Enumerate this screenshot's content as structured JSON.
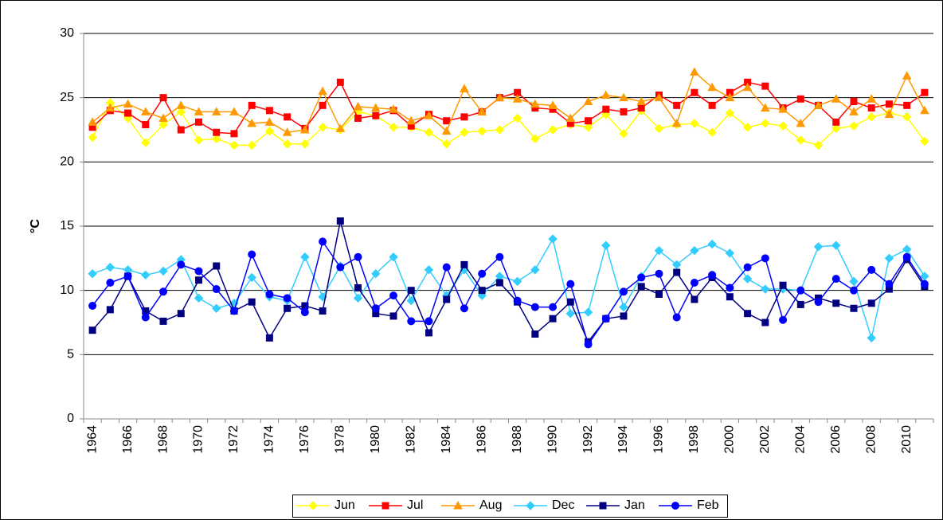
{
  "chart_data": {
    "type": "line",
    "y_label": "°C",
    "categories": [
      "1964",
      null,
      "1966",
      null,
      "1968",
      null,
      "1970",
      null,
      "1972",
      null,
      "1974",
      null,
      "1976",
      null,
      "1978",
      null,
      "1980",
      null,
      "1982",
      null,
      "1984",
      null,
      "1986",
      null,
      "1988",
      null,
      "1990",
      null,
      "1992",
      null,
      "1994",
      null,
      "1996",
      null,
      "1998",
      null,
      "2000",
      null,
      "2002",
      null,
      "2004",
      null,
      "2006",
      null,
      "2008",
      null,
      "2010",
      null
    ],
    "ylim": [
      0,
      30
    ],
    "yticks": [
      0,
      5,
      10,
      15,
      20,
      25,
      30
    ],
    "grid": true,
    "legend": "bottom",
    "series": [
      {
        "name": "Jun",
        "color": "#ffff00",
        "marker": "diamond",
        "values": [
          21.9,
          24.6,
          23.4,
          21.5,
          22.9,
          23.9,
          21.7,
          21.8,
          21.3,
          21.3,
          22.4,
          21.4,
          21.4,
          22.7,
          22.5,
          23.9,
          23.6,
          22.7,
          22.7,
          22.3,
          21.4,
          22.3,
          22.4,
          22.5,
          23.4,
          21.8,
          22.5,
          22.9,
          22.7,
          23.7,
          22.2,
          24.0,
          22.6,
          22.9,
          23.0,
          22.3,
          23.8,
          22.7,
          23.0,
          22.8,
          21.7,
          21.3,
          22.6,
          22.8,
          23.5,
          23.8,
          23.5,
          21.6
        ]
      },
      {
        "name": "Jul",
        "color": "#ff0000",
        "marker": "square",
        "values": [
          22.7,
          24.0,
          23.8,
          22.9,
          25.0,
          22.5,
          23.1,
          22.3,
          22.2,
          24.4,
          24.0,
          23.5,
          22.6,
          24.4,
          26.2,
          23.4,
          23.6,
          24.0,
          22.8,
          23.7,
          23.2,
          23.5,
          23.9,
          25.0,
          25.4,
          24.2,
          24.1,
          23.0,
          23.2,
          24.1,
          23.9,
          24.2,
          25.2,
          24.4,
          25.4,
          24.4,
          25.4,
          26.2,
          25.9,
          24.2,
          24.9,
          24.4,
          23.1,
          24.7,
          24.2,
          24.5,
          24.4,
          25.4
        ]
      },
      {
        "name": "Aug",
        "color": "#ff9900",
        "marker": "triangle",
        "values": [
          23.1,
          24.2,
          24.5,
          23.9,
          23.4,
          24.4,
          23.9,
          23.9,
          23.9,
          23.0,
          23.1,
          22.3,
          22.5,
          25.5,
          22.6,
          24.3,
          24.2,
          24.1,
          23.2,
          23.6,
          22.4,
          25.7,
          23.9,
          25.0,
          24.9,
          24.5,
          24.4,
          23.4,
          24.7,
          25.2,
          25.0,
          24.7,
          25.0,
          23.0,
          27.0,
          25.8,
          25.0,
          25.8,
          24.2,
          24.1,
          23.0,
          24.4,
          24.9,
          23.9,
          24.9,
          23.7,
          26.7,
          24.0
        ]
      },
      {
        "name": "Dec",
        "color": "#33ccff",
        "marker": "diamond",
        "values": [
          11.3,
          11.8,
          11.6,
          11.2,
          11.5,
          12.4,
          9.4,
          8.6,
          9.0,
          11.0,
          9.5,
          9.2,
          12.6,
          9.5,
          11.9,
          9.4,
          11.3,
          12.6,
          9.2,
          11.6,
          9.6,
          11.6,
          9.6,
          11.1,
          10.7,
          11.6,
          14.0,
          8.2,
          8.3,
          13.5,
          8.7,
          11.1,
          13.1,
          12.0,
          13.1,
          13.6,
          12.9,
          10.9,
          10.1,
          10.1,
          10.0,
          13.4,
          13.5,
          10.7,
          6.3,
          12.5,
          13.2,
          11.1
        ]
      },
      {
        "name": "Jan",
        "color": "#000080",
        "marker": "square",
        "values": [
          6.9,
          8.5,
          11.1,
          8.4,
          7.6,
          8.2,
          10.8,
          11.9,
          8.4,
          9.1,
          6.3,
          8.6,
          8.8,
          8.4,
          15.4,
          10.2,
          8.2,
          8.0,
          10.0,
          6.7,
          9.3,
          12.0,
          10.0,
          10.6,
          9.1,
          6.6,
          7.8,
          9.1,
          6.0,
          7.8,
          8.0,
          10.3,
          9.7,
          11.4,
          9.3,
          11.0,
          9.5,
          8.2,
          7.5,
          10.4,
          8.9,
          9.4,
          9.0,
          8.6,
          9.0,
          10.1,
          12.4,
          10.3
        ]
      },
      {
        "name": "Feb",
        "color": "#0000ff",
        "marker": "circle",
        "values": [
          8.8,
          10.6,
          11.1,
          7.9,
          9.9,
          12.0,
          11.5,
          10.1,
          8.4,
          12.8,
          9.7,
          9.4,
          8.3,
          13.8,
          11.8,
          12.6,
          8.6,
          9.6,
          7.6,
          7.6,
          11.8,
          8.6,
          11.3,
          12.6,
          9.2,
          8.7,
          8.7,
          10.5,
          5.8,
          7.8,
          9.9,
          11.0,
          11.3,
          7.9,
          10.6,
          11.2,
          10.2,
          11.8,
          12.5,
          7.7,
          10.0,
          9.1,
          10.9,
          10.0,
          11.6,
          10.5,
          12.6,
          10.5
        ]
      }
    ]
  }
}
